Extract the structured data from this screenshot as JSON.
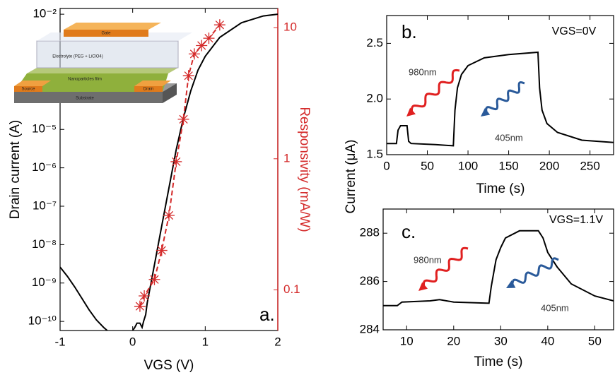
{
  "chart_data": [
    {
      "type": "line",
      "annotation": "a.",
      "xlabel": "VGS (V)",
      "ylabel": "Drain current (A)",
      "y2label": "Responsivity (mA/W)",
      "xlim": [
        -1,
        2
      ],
      "xticks": [
        -1,
        0,
        1,
        2
      ],
      "ylim": [
        5.8e-11,
        0.0141
      ],
      "ylog": true,
      "yticks": [
        {
          "value": 1e-10,
          "label": "10⁻¹⁰"
        },
        {
          "value": 1e-09,
          "label": "10⁻⁹"
        },
        {
          "value": 1e-08,
          "label": "10⁻⁸"
        },
        {
          "value": 1e-07,
          "label": "10⁻⁷"
        },
        {
          "value": 1e-06,
          "label": "10⁻⁶"
        },
        {
          "value": 1e-05,
          "label": "10⁻⁵"
        },
        {
          "value": 0.01,
          "label": "10⁻²"
        }
      ],
      "y2lim": [
        0.049,
        14
      ],
      "y2log": true,
      "y2ticks": [
        0.1,
        1,
        10
      ],
      "y2color": "#d42a2a",
      "inset": {
        "gate": "Gate",
        "electrolyte": "Electrolyte (PEG + LiClO4)",
        "film": "Nanoparticles film",
        "source": "Source",
        "drain": "Drain",
        "substrate": "Substrate"
      },
      "series": [
        {
          "color": "#000000",
          "marker": "none",
          "dashed": false,
          "x": [
            -1,
            -0.9,
            -0.8,
            -0.7,
            -0.6,
            -0.5,
            -0.4,
            -0.35,
            null,
            0.0,
            0.03,
            0.06,
            0.1,
            0.13,
            0.15,
            0.18,
            0.2,
            0.3,
            0.4,
            0.5,
            0.6,
            0.7,
            0.8,
            0.9,
            1.0,
            1.2,
            1.5,
            1.8,
            2.0
          ],
          "values": [
            2.6e-09,
            1.5e-09,
            8e-10,
            4e-10,
            2e-10,
            1.1e-10,
            7e-11,
            5.8e-11,
            null,
            5.8e-11,
            7e-11,
            9e-11,
            9e-11,
            7e-11,
            1e-10,
            1.5e-10,
            3e-10,
            3e-09,
            3e-08,
            3e-07,
            3e-06,
            2e-05,
            0.0001,
            0.00035,
            0.0008,
            0.0025,
            0.006,
            0.009,
            0.01
          ]
        },
        {
          "color": "#d42a2a",
          "marker": "star",
          "dashed": true,
          "axis": "y2",
          "x": [
            0.1,
            0.16,
            0.3,
            0.4,
            0.5,
            0.6,
            0.7,
            0.77,
            0.85,
            0.95,
            1.05,
            1.2
          ],
          "values": [
            0.075,
            0.09,
            0.12,
            0.2,
            0.37,
            0.95,
            2.0,
            4.3,
            6.3,
            7.3,
            8.3,
            10.5
          ]
        }
      ]
    },
    {
      "type": "line",
      "annotation": "b.",
      "condition": "VGS=0V",
      "labels": [
        "980nm",
        "405nm"
      ],
      "xlabel": "Time (s)",
      "ylabel": "Current (μA)",
      "xlim": [
        0,
        279
      ],
      "xticks": [
        0,
        50,
        100,
        150,
        200,
        250
      ],
      "ylim": [
        1.5,
        2.75
      ],
      "yticks": [
        {
          "value": 1.5,
          "label": "1.5"
        },
        {
          "value": 2.0,
          "label": "2.0"
        },
        {
          "value": 2.5,
          "label": "2.5"
        }
      ],
      "series": [
        {
          "color": "#000000",
          "marker": "none",
          "dashed": false,
          "x": [
            0,
            12,
            14,
            17,
            25,
            27,
            30,
            60,
            82,
            84,
            87,
            92,
            100,
            120,
            150,
            186,
            188,
            191,
            197,
            210,
            240,
            279
          ],
          "values": [
            1.6,
            1.6,
            1.72,
            1.76,
            1.76,
            1.62,
            1.6,
            1.59,
            1.58,
            1.9,
            2.1,
            2.22,
            2.3,
            2.37,
            2.4,
            2.42,
            2.1,
            1.9,
            1.78,
            1.7,
            1.63,
            1.61
          ]
        }
      ]
    },
    {
      "type": "line",
      "annotation": "c.",
      "condition": "VGS=1.1V",
      "labels": [
        "980nm",
        "405nm"
      ],
      "xlabel": "Time (s)",
      "xlim": [
        5,
        54
      ],
      "xticks": [
        10,
        20,
        30,
        40,
        50
      ],
      "ylim": [
        284,
        289
      ],
      "yticks": [
        284,
        286,
        288
      ],
      "series": [
        {
          "color": "#000000",
          "marker": "none",
          "dashed": false,
          "x": [
            5,
            8,
            9,
            15,
            17,
            20,
            27.5,
            28,
            29,
            30,
            31,
            34,
            38,
            39,
            40,
            42,
            45,
            50,
            54
          ],
          "values": [
            285,
            285,
            285.15,
            285.2,
            285.25,
            285.15,
            285.1,
            285.8,
            286.9,
            287.4,
            287.8,
            288.1,
            288.1,
            287.8,
            287.2,
            286.6,
            285.9,
            285.4,
            285.2
          ]
        }
      ]
    }
  ]
}
